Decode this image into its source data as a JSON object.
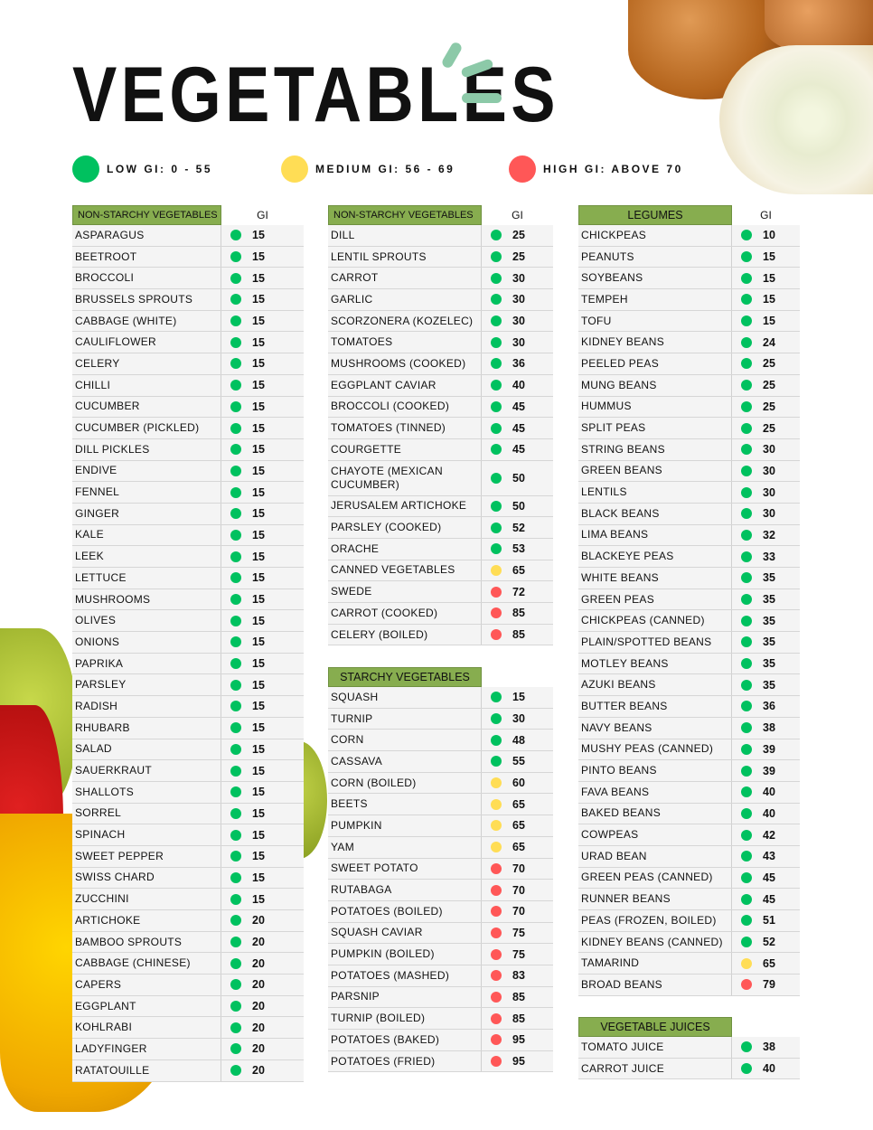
{
  "title": "VEGETABLES",
  "colors": {
    "low": "#00c15f",
    "medium": "#ffdd55",
    "high": "#ff5757",
    "header": "#87ad4f"
  },
  "legend": [
    {
      "label": "LOW GI: 0 - 55",
      "level": "low"
    },
    {
      "label": "MEDIUM GI: 56 - 69",
      "level": "medium"
    },
    {
      "label": "HIGH GI: ABOVE 70",
      "level": "high"
    }
  ],
  "gi_header": "GI",
  "tables": [
    {
      "title": "NON-STARCHY VEGETABLES",
      "rows": [
        [
          "ASPARAGUS",
          15
        ],
        [
          "BEETROOT",
          15
        ],
        [
          "BROCCOLI",
          15
        ],
        [
          "BRUSSELS SPROUTS",
          15
        ],
        [
          "CABBAGE (WHITE)",
          15
        ],
        [
          "CAULIFLOWER",
          15
        ],
        [
          "CELERY",
          15
        ],
        [
          "CHILLI",
          15
        ],
        [
          "CUCUMBER",
          15
        ],
        [
          "CUCUMBER (PICKLED)",
          15
        ],
        [
          "DILL PICKLES",
          15
        ],
        [
          "ENDIVE",
          15
        ],
        [
          "FENNEL",
          15
        ],
        [
          "GINGER",
          15
        ],
        [
          "KALE",
          15
        ],
        [
          "LEEK",
          15
        ],
        [
          "LETTUCE",
          15
        ],
        [
          "MUSHROOMS",
          15
        ],
        [
          "OLIVES",
          15
        ],
        [
          "ONIONS",
          15
        ],
        [
          "PAPRIKA",
          15
        ],
        [
          "PARSLEY",
          15
        ],
        [
          "RADISH",
          15
        ],
        [
          "RHUBARB",
          15
        ],
        [
          "SALAD",
          15
        ],
        [
          "SAUERKRAUT",
          15
        ],
        [
          "SHALLOTS",
          15
        ],
        [
          "SORREL",
          15
        ],
        [
          "SPINACH",
          15
        ],
        [
          "SWEET PEPPER",
          15
        ],
        [
          "SWISS CHARD",
          15
        ],
        [
          "ZUCCHINI",
          15
        ],
        [
          "ARTICHOKE",
          20
        ],
        [
          "BAMBOO SPROUTS",
          20
        ],
        [
          "CABBAGE (CHINESE)",
          20
        ],
        [
          "CAPERS",
          20
        ],
        [
          "EGGPLANT",
          20
        ],
        [
          "KOHLRABI",
          20
        ],
        [
          "LADYFINGER",
          20
        ],
        [
          "RATATOUILLE",
          20
        ]
      ]
    },
    {
      "title": "NON-STARCHY VEGETABLES",
      "rows": [
        [
          "DILL",
          25
        ],
        [
          "LENTIL SPROUTS",
          25
        ],
        [
          "CARROT",
          30
        ],
        [
          "GARLIC",
          30
        ],
        [
          "SCORZONERA (KOZELEC)",
          30
        ],
        [
          "TOMATOES",
          30
        ],
        [
          "MUSHROOMS (COOKED)",
          36
        ],
        [
          "EGGPLANT CAVIAR",
          40
        ],
        [
          "BROCCOLI (COOKED)",
          45
        ],
        [
          "TOMATOES (TINNED)",
          45
        ],
        [
          "COURGETTE",
          45
        ],
        [
          "CHAYOTE (MEXICAN CUCUMBER)",
          50
        ],
        [
          "JERUSALEM ARTICHOKE",
          50
        ],
        [
          "PARSLEY (COOKED)",
          52
        ],
        [
          "ORACHE",
          53
        ],
        [
          "CANNED VEGETABLES",
          65
        ],
        [
          "SWEDE",
          72
        ],
        [
          "CARROT (COOKED)",
          85
        ],
        [
          "CELERY (BOILED)",
          85
        ]
      ]
    },
    {
      "title": "STARCHY VEGETABLES",
      "rows": [
        [
          "SQUASH",
          15
        ],
        [
          "TURNIP",
          30
        ],
        [
          "CORN",
          48
        ],
        [
          "CASSAVA",
          55
        ],
        [
          "CORN (BOILED)",
          60
        ],
        [
          "BEETS",
          65
        ],
        [
          "PUMPKIN",
          65
        ],
        [
          "YAM",
          65
        ],
        [
          "SWEET POTATO",
          70
        ],
        [
          "RUTABAGA",
          70
        ],
        [
          "POTATOES (BOILED)",
          70
        ],
        [
          "SQUASH CAVIAR",
          75
        ],
        [
          "PUMPKIN (BOILED)",
          75
        ],
        [
          "POTATOES (MASHED)",
          83
        ],
        [
          "PARSNIP",
          85
        ],
        [
          "TURNIP (BOILED)",
          85
        ],
        [
          "POTATOES (BAKED)",
          95
        ],
        [
          "POTATOES (FRIED)",
          95
        ]
      ]
    },
    {
      "title": "LEGUMES",
      "rows": [
        [
          "CHICKPEAS",
          10
        ],
        [
          "PEANUTS",
          15
        ],
        [
          "SOYBEANS",
          15
        ],
        [
          "TEMPEH",
          15
        ],
        [
          "TOFU",
          15
        ],
        [
          "KIDNEY BEANS",
          24
        ],
        [
          "PEELED PEAS",
          25
        ],
        [
          "MUNG BEANS",
          25
        ],
        [
          "HUMMUS",
          25
        ],
        [
          "SPLIT PEAS",
          25
        ],
        [
          "STRING BEANS",
          30
        ],
        [
          "GREEN BEANS",
          30
        ],
        [
          "LENTILS",
          30
        ],
        [
          "BLACK BEANS",
          30
        ],
        [
          "LIMA BEANS",
          32
        ],
        [
          "BLACKEYE PEAS",
          33
        ],
        [
          "WHITE BEANS",
          35
        ],
        [
          "GREEN PEAS",
          35
        ],
        [
          "CHICKPEAS (CANNED)",
          35
        ],
        [
          "PLAIN/SPOTTED BEANS",
          35
        ],
        [
          "MOTLEY BEANS",
          35
        ],
        [
          "AZUKI BEANS",
          35
        ],
        [
          "BUTTER BEANS",
          36
        ],
        [
          "NAVY BEANS",
          38
        ],
        [
          "MUSHY PEAS (CANNED)",
          39
        ],
        [
          "PINTO BEANS",
          39
        ],
        [
          "FAVA BEANS",
          40
        ],
        [
          "BAKED BEANS",
          40
        ],
        [
          "COWPEAS",
          42
        ],
        [
          "URAD BEAN",
          43
        ],
        [
          "GREEN PEAS (CANNED)",
          45
        ],
        [
          "RUNNER BEANS",
          45
        ],
        [
          "PEAS (FROZEN, BOILED)",
          51
        ],
        [
          "KIDNEY BEANS (CANNED)",
          52
        ],
        [
          "TAMARIND",
          65
        ],
        [
          "BROAD BEANS",
          79
        ]
      ]
    },
    {
      "title": "VEGETABLE JUICES",
      "rows": [
        [
          "TOMATO JUICE",
          38
        ],
        [
          "CARROT JUICE",
          40
        ]
      ]
    }
  ]
}
